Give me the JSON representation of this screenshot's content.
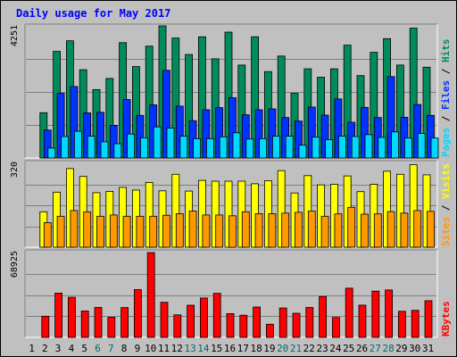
{
  "chart_data": {
    "type": "bar",
    "title": "Daily usage for May 2017",
    "days": [
      "1",
      "2",
      "3",
      "4",
      "5",
      "6",
      "7",
      "8",
      "9",
      "10",
      "11",
      "12",
      "13",
      "14",
      "15",
      "16",
      "17",
      "18",
      "19",
      "20",
      "21",
      "22",
      "23",
      "24",
      "25",
      "26",
      "27",
      "28",
      "29",
      "30",
      "31"
    ],
    "weekend_days": [
      "6",
      "7",
      "13",
      "14",
      "20",
      "21",
      "27",
      "28"
    ],
    "colors": {
      "title": "#0000ff",
      "frame_bg": "#c0c0c0",
      "plot_bg": "#c0c0c0",
      "weekday_label": "#000000",
      "weekend_label": "#006a6a",
      "grid": "#808080"
    },
    "panels": [
      {
        "id": "hits",
        "ymax_label": "4251",
        "ymax": 4251,
        "series": [
          {
            "name": "Hits",
            "color": "#008b5b",
            "values": [
              0,
              1457,
              3430,
              3770,
              2840,
              2200,
              2560,
              3712,
              2940,
              3600,
              4251,
              3860,
              3330,
              3900,
              3190,
              4050,
              2990,
              3900,
              2780,
              3280,
              2080,
              2870,
              2600,
              2870,
              3630,
              2650,
              3400,
              3840,
              2990,
              4180,
              2920
            ]
          },
          {
            "name": "Files",
            "color": "#0033ff",
            "values": [
              0,
              900,
              2080,
              2300,
              1450,
              1470,
              1050,
              1880,
              1370,
              1710,
              2820,
              1670,
              1200,
              1550,
              1620,
              1940,
              1390,
              1550,
              1580,
              1300,
              1190,
              1640,
              1380,
              1900,
              1150,
              1630,
              1300,
              2620,
              1310,
              1720,
              1370
            ]
          },
          {
            "name": "Pages",
            "color": "#00d8ff",
            "values": [
              0,
              320,
              690,
              860,
              700,
              520,
              460,
              770,
              650,
              1000,
              960,
              700,
              620,
              620,
              680,
              810,
              610,
              620,
              700,
              700,
              410,
              670,
              590,
              700,
              690,
              750,
              660,
              840,
              640,
              790,
              640
            ]
          }
        ],
        "legend": [
          "Pages",
          "/",
          "Files",
          "/",
          "Hits"
        ],
        "legend_colors": [
          "#00d8ff",
          "#000000",
          "#0033ff",
          "#000000",
          "#008b5b"
        ]
      },
      {
        "id": "visits",
        "ymax_label": "320",
        "ymax": 320,
        "series": [
          {
            "name": "Visits",
            "color": "#ffff00",
            "values": [
              0,
              135,
              210,
              300,
              270,
              208,
              213,
              228,
              218,
              247,
              215,
              278,
              214,
              255,
              252,
              252,
              252,
              242,
              254,
              292,
              207,
              273,
              238,
              240,
              272,
              212,
              240,
              290,
              278,
              315,
              276
            ]
          },
          {
            "name": "Sites",
            "color": "#ff9900",
            "values": [
              0,
              94,
              118,
              140,
              135,
              118,
              123,
              118,
              118,
              118,
              122,
              128,
              138,
              123,
              123,
              120,
              135,
              128,
              128,
              130,
              133,
              138,
              118,
              127,
              152,
              126,
              127,
              136,
              130,
              140,
              137
            ]
          }
        ],
        "legend": [
          "Sites",
          "/",
          "Visits"
        ],
        "legend_colors": [
          "#ff9900",
          "#000000",
          "#ffff00"
        ]
      },
      {
        "id": "kbytes",
        "ymax_label": "68925",
        "ymax": 68925,
        "series": [
          {
            "name": "KBytes",
            "color": "#ff0000",
            "values": [
              0,
              17200,
              36000,
              32600,
              21500,
              24300,
              16300,
              24200,
              38800,
              68925,
              28500,
              18300,
              26100,
              32000,
              35800,
              19300,
              18000,
              24700,
              10700,
              23900,
              19600,
              24300,
              33200,
              16200,
              40000,
              26200,
              37600,
              38500,
              21200,
              22000,
              29800
            ]
          }
        ],
        "legend": [
          "KBytes"
        ],
        "legend_colors": [
          "#ff0000"
        ]
      }
    ]
  }
}
